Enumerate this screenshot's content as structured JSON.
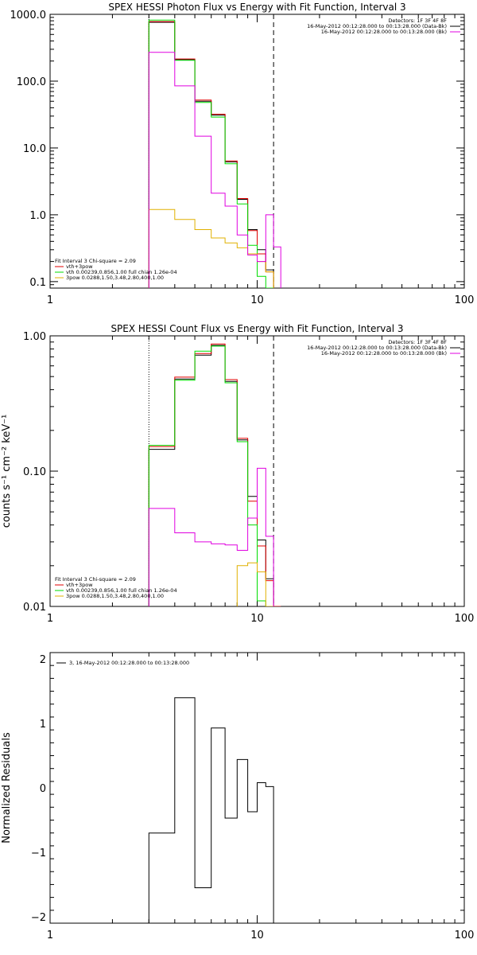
{
  "chart_data": [
    {
      "type": "line",
      "id": "photon",
      "title": "SPEX HESSI Photon Flux vs Energy with Fit Function, Interval 3",
      "ylabel": "",
      "x_scale": "log",
      "y_scale": "log",
      "xlim": [
        1,
        100
      ],
      "ylim": [
        0.08,
        1000
      ],
      "x_ticks": [
        {
          "value": 1,
          "label": "1"
        },
        {
          "value": 10,
          "label": "10"
        },
        {
          "value": 100,
          "label": "100"
        }
      ],
      "y_ticks": [
        {
          "value": 0.1,
          "label": "0.1"
        },
        {
          "value": 1,
          "label": "1.0"
        },
        {
          "value": 10,
          "label": "10.0"
        },
        {
          "value": 100,
          "label": "100.0"
        },
        {
          "value": 1000,
          "label": "1000.0"
        }
      ],
      "vlines": [
        {
          "x": 3.0,
          "style": "dotted"
        },
        {
          "x": 12.0,
          "style": "dashed"
        }
      ],
      "edges": [
        3,
        4,
        5,
        6,
        7,
        8,
        9,
        10,
        11,
        12,
        13
      ],
      "series": [
        {
          "name": "data",
          "color": "#000000",
          "values": [
            760,
            210,
            50,
            31,
            6.2,
            1.7,
            0.6,
            0.3,
            0.15,
            null
          ]
        },
        {
          "name": "vth+3pow",
          "color": "#e00000",
          "values": [
            780,
            215,
            52,
            32,
            6.4,
            1.75,
            0.58,
            0.26,
            0.14,
            null
          ]
        },
        {
          "name": "vth",
          "color": "#00dd00",
          "values": [
            820,
            205,
            48,
            29,
            5.8,
            1.45,
            0.35,
            0.12,
            0.075,
            null
          ]
        },
        {
          "name": "3pow",
          "color": "#e0b000",
          "values": [
            1.2,
            0.85,
            0.6,
            0.45,
            0.38,
            0.32,
            0.26,
            0.2,
            0.14,
            null
          ]
        },
        {
          "name": "bk",
          "color": "#e000e0",
          "values": [
            270,
            85,
            15,
            2.1,
            1.35,
            0.5,
            0.25,
            0.2,
            1.0,
            0.33
          ]
        }
      ],
      "legend_right": [
        {
          "text": "Detectors: 1F 3F 4F 8F",
          "color": null
        },
        {
          "text": "16-May-2012 00:12:28.000 to 00:13:28.000 (Data-Bk)",
          "color": "#000000"
        },
        {
          "text": "16-May-2012 00:12:28.000 to 00:13:28.000 (Bk)",
          "color": "#e000e0"
        }
      ],
      "legend_left": [
        {
          "text": "Fit Interval  3   Chi-square = 2.09",
          "color": null
        },
        {
          "text": "vth+3pow",
          "color": "#e00000"
        },
        {
          "text": "vth 0.00239,0.856,1.00   full chian 1.26e-04",
          "color": "#00dd00"
        },
        {
          "text": "3pow 0.0288,1.50,3.48,2.80,400,1.00",
          "color": "#e0b000"
        }
      ]
    },
    {
      "type": "line",
      "id": "count",
      "title": "SPEX HESSI Count Flux vs Energy with Fit Function, Interval 3",
      "ylabel": "counts s⁻¹ cm⁻² keV⁻¹",
      "x_scale": "log",
      "y_scale": "log",
      "xlim": [
        1,
        100
      ],
      "ylim": [
        0.01,
        1.0
      ],
      "x_ticks": [
        {
          "value": 1,
          "label": "1"
        },
        {
          "value": 10,
          "label": "10"
        },
        {
          "value": 100,
          "label": "100"
        }
      ],
      "y_ticks": [
        {
          "value": 0.01,
          "label": "0.01"
        },
        {
          "value": 0.1,
          "label": "0.10"
        },
        {
          "value": 1,
          "label": "1.00"
        }
      ],
      "vlines": [
        {
          "x": 3.0,
          "style": "dotted"
        },
        {
          "x": 12.0,
          "style": "dashed"
        }
      ],
      "edges": [
        3,
        4,
        5,
        6,
        7,
        8,
        9,
        10,
        11,
        12,
        13
      ],
      "series": [
        {
          "name": "data",
          "color": "#000000",
          "values": [
            0.145,
            0.48,
            0.72,
            0.85,
            0.46,
            0.17,
            0.065,
            0.031,
            0.016,
            0.0098
          ]
        },
        {
          "name": "vth+3pow",
          "color": "#e00000",
          "values": [
            0.152,
            0.495,
            0.74,
            0.87,
            0.475,
            0.175,
            0.06,
            0.028,
            0.0155,
            0.0098
          ]
        },
        {
          "name": "vth",
          "color": "#00dd00",
          "values": [
            0.155,
            0.47,
            0.77,
            0.84,
            0.45,
            0.165,
            0.04,
            0.011,
            0.0095,
            null
          ]
        },
        {
          "name": "3pow",
          "color": "#e0b000",
          "values": [
            null,
            null,
            null,
            null,
            null,
            0.02,
            0.021,
            0.018,
            0.0095,
            null
          ]
        },
        {
          "name": "bk",
          "color": "#e000e0",
          "values": [
            0.053,
            0.035,
            0.03,
            0.029,
            0.0285,
            0.026,
            0.045,
            0.105,
            0.033,
            null
          ]
        }
      ],
      "legend_right": [
        {
          "text": "Detectors: 1F 3F 4F 8F",
          "color": null
        },
        {
          "text": "16-May-2012 00:12:28.000 to 00:13:28.000 (Data-Bk)",
          "color": "#000000"
        },
        {
          "text": "16-May-2012 00:12:28.000 to 00:13:28.000 (Bk)",
          "color": "#e000e0"
        }
      ],
      "legend_left": [
        {
          "text": "Fit Interval  3   Chi-square = 2.09",
          "color": null
        },
        {
          "text": "vth+3pow",
          "color": "#e00000"
        },
        {
          "text": "vth 0.00239,0.856,1.00   full chian 1.26e-04",
          "color": "#00dd00"
        },
        {
          "text": "3pow 0.0288,1.50,3.48,2.80,400,1.00",
          "color": "#e0b000"
        }
      ]
    },
    {
      "type": "line",
      "id": "residuals",
      "title": "",
      "ylabel": "Normalized Residuals",
      "x_scale": "log",
      "y_scale": "linear",
      "xlim": [
        1,
        100
      ],
      "ylim": [
        -2.1,
        2.1
      ],
      "x_ticks": [
        {
          "value": 1,
          "label": "1"
        },
        {
          "value": 10,
          "label": "10"
        },
        {
          "value": 100,
          "label": "100"
        }
      ],
      "y_ticks": [
        {
          "value": -2,
          "label": "−2"
        },
        {
          "value": -1,
          "label": "−1"
        },
        {
          "value": 0,
          "label": "0"
        },
        {
          "value": 1,
          "label": "1"
        },
        {
          "value": 2,
          "label": "2"
        }
      ],
      "vlines": [],
      "edges": [
        3,
        4,
        5,
        6,
        7,
        8,
        9,
        10,
        11,
        12
      ],
      "series": [
        {
          "name": "3, 16-May-2012 00:12:28.000 to 00:13:28.000",
          "color": "#000000",
          "values": [
            -0.7,
            1.4,
            -1.55,
            0.93,
            -0.47,
            0.44,
            -0.37,
            0.08,
            0.02
          ]
        }
      ],
      "legend_right": [],
      "legend_left": [
        {
          "text": "3, 16-May-2012 00:12:28.000 to 00:13:28.000",
          "color": "#000000"
        }
      ]
    }
  ]
}
